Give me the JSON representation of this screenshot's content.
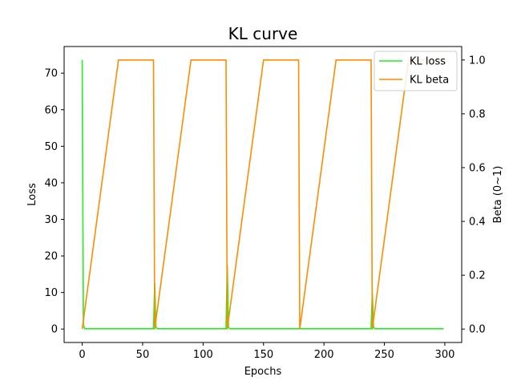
{
  "chart_data": {
    "type": "line",
    "title": "KL curve",
    "xlabel": "Epochs",
    "ylabel": "Loss",
    "y2label": "Beta (0~1)",
    "xlim": [
      -14.95,
      313.95
    ],
    "ylim": [
      -3.68,
      77.28
    ],
    "y2lim": [
      -0.05,
      1.05
    ],
    "xticks": [
      0,
      50,
      100,
      150,
      200,
      250,
      300
    ],
    "yticks": [
      0,
      10,
      20,
      30,
      40,
      50,
      60,
      70
    ],
    "y2ticks": [
      0.0,
      0.2,
      0.4,
      0.6,
      0.8,
      1.0
    ],
    "xtick_labels": [
      "0",
      "50",
      "100",
      "150",
      "200",
      "250",
      "300"
    ],
    "ytick_labels": [
      "0",
      "10",
      "20",
      "30",
      "40",
      "50",
      "60",
      "70"
    ],
    "y2tick_labels": [
      "0.0",
      "0.2",
      "0.4",
      "0.6",
      "0.8",
      "1.0"
    ],
    "legend_position": "top-right",
    "series": [
      {
        "name": "KL loss",
        "axis": "left",
        "color": "#22ee22",
        "x": [
          0,
          1,
          2,
          59,
          60,
          61,
          62,
          119,
          120,
          121,
          122,
          179,
          180,
          181,
          239,
          240,
          241,
          242,
          299
        ],
        "y": [
          73.6,
          1.0,
          0.1,
          0.1,
          12.5,
          0.5,
          0.1,
          0.1,
          17.5,
          0.5,
          0.1,
          0.1,
          0.3,
          0.1,
          0.1,
          10.0,
          0.4,
          0.1,
          0.1
        ]
      },
      {
        "name": "KL beta",
        "axis": "right",
        "color": "#ff8c00",
        "x": [
          0,
          30,
          59,
          60,
          90,
          119,
          120,
          150,
          179,
          180,
          210,
          239,
          240,
          270,
          299
        ],
        "y": [
          0.0,
          1.0,
          1.0,
          0.0,
          1.0,
          1.0,
          0.0,
          1.0,
          1.0,
          0.0,
          1.0,
          1.0,
          0.0,
          1.0,
          1.0
        ]
      }
    ]
  }
}
